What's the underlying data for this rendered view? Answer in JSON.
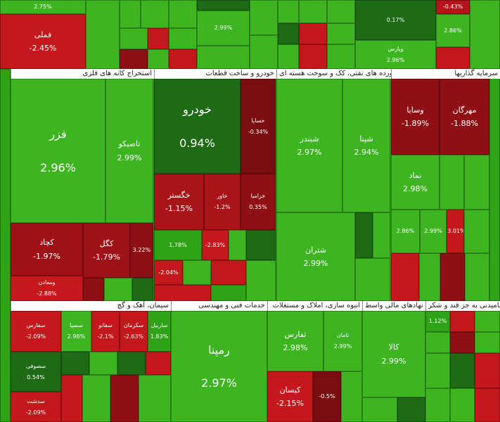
{
  "top": {
    "tiles": [
      {
        "change": "2.75%",
        "color": "#3cb521"
      },
      {
        "name": "فملی",
        "change": "-2.45%",
        "color": "#c4181c"
      },
      {
        "change": "2.99%",
        "color": "#3cb521"
      },
      {
        "change": "0.17%",
        "color": "#1f6a17"
      },
      {
        "name": "وپارس",
        "change": "2.96%",
        "color": "#3cb521"
      },
      {
        "change": "-0.43%",
        "color": "#b5141a"
      },
      {
        "change": "2.86%",
        "color": "#3cb521"
      }
    ]
  },
  "sectors": [
    {
      "title": "استخراج کانه های فلزی",
      "tiles": [
        {
          "name": "فزر",
          "change": "2.96%",
          "color": "#3cb521"
        },
        {
          "name": "تاصیکو",
          "change": "2.99%",
          "color": "#3cb521"
        },
        {
          "name": "کچاد",
          "change": "-1.97%",
          "color": "#9e1116"
        },
        {
          "name": "ومعادن",
          "change": "-2.88%",
          "color": "#c4181c"
        },
        {
          "name": "کگل",
          "change": "-1.79%",
          "color": "#9e1116"
        },
        {
          "change": "3.22%",
          "color": "#8f1014"
        }
      ]
    },
    {
      "title": "خودرو و ساخت قطعات",
      "tiles": [
        {
          "name": "خودرو",
          "change": "0.94%",
          "color": "#1f6a17"
        },
        {
          "name": "خساپا",
          "change": "-0.34%",
          "color": "#7a0d10"
        },
        {
          "name": "خگستر",
          "change": "-1.15%",
          "color": "#a81418"
        },
        {
          "name": "خاور",
          "change": "-1.2%",
          "color": "#a81418"
        },
        {
          "name": "خزامیا",
          "change": "0.35%",
          "color": "#8f1014"
        },
        {
          "change": "1.78%",
          "color": "#2ea318"
        },
        {
          "change": "-2.83%",
          "color": "#c4181c"
        },
        {
          "change": "-2.04%",
          "color": "#c4181c"
        }
      ]
    },
    {
      "title": "فراورده های نفتی، کک و سوخت هسته ای",
      "tiles": [
        {
          "name": "شبندر",
          "change": "2.97%",
          "color": "#3cb521"
        },
        {
          "name": "شپنا",
          "change": "2.94%",
          "color": "#3cb521"
        },
        {
          "name": "شتران",
          "change": "2.99%",
          "color": "#3cb521"
        }
      ]
    },
    {
      "title": "سرمایه گذاریها",
      "tiles": [
        {
          "name": "وسایا",
          "change": "-1.89%",
          "color": "#8f1014"
        },
        {
          "name": "مهرگان",
          "change": "-1.88%",
          "color": "#8f1014"
        },
        {
          "name": "نماد",
          "change": "2.98%",
          "color": "#3cb521"
        },
        {
          "change": "2.86%",
          "color": "#3cb521"
        },
        {
          "change": "2.99%",
          "color": "#3cb521"
        },
        {
          "change": "-3.01%",
          "color": "#c4181c"
        }
      ]
    },
    {
      "title": "سیمان، آهک و گچ",
      "tiles": [
        {
          "name": "سفارس",
          "change": "-2.09%",
          "color": "#c4181c"
        },
        {
          "name": "سصوفی",
          "change": "0.54%",
          "color": "#1f6a17"
        },
        {
          "name": "سدشت",
          "change": "-2.09%",
          "color": "#c4181c"
        },
        {
          "name": "سسپا",
          "change": "2.98%",
          "color": "#3cb521"
        },
        {
          "name": "سفانو",
          "change": "-2.1%",
          "color": "#c4181c"
        },
        {
          "name": "سکرمان",
          "change": "-2.63%",
          "color": "#c4181c"
        },
        {
          "name": "ساربیل",
          "change": "1.83%",
          "color": "#2ea318"
        }
      ]
    },
    {
      "title": "خدمات فنی و مهندسی",
      "tiles": [
        {
          "name": "رمپنا",
          "change": "2.97%",
          "color": "#3cb521"
        }
      ]
    },
    {
      "title": "انبوه سازی، املاک و مستغلات",
      "tiles": [
        {
          "name": "ثفارس",
          "change": "2.98%",
          "color": "#3cb521"
        },
        {
          "name": "ثامان",
          "change": "2.99%",
          "color": "#3cb521"
        },
        {
          "name": "کیسان",
          "change": "-2.15%",
          "color": "#c4181c"
        },
        {
          "change": "-0.5%",
          "color": "#7a0d10"
        }
      ]
    },
    {
      "title": "فعالیتهای کمکی به نهادهای مالی واسط",
      "tiles": [
        {
          "name": "کالا",
          "change": "2.99%",
          "color": "#3cb521"
        }
      ]
    },
    {
      "title": "محصولات غذایی و آشامیدنی به جز قند و شکر",
      "tiles": [
        {
          "change": "1.12%",
          "color": "#2ea318"
        }
      ]
    }
  ]
}
